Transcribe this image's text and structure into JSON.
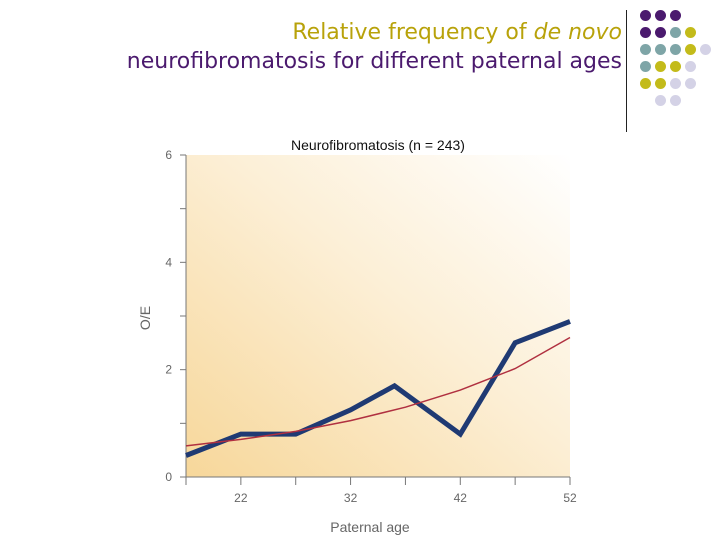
{
  "slide": {
    "title_line1_prefix": "Relative frequency of ",
    "title_line1_italic": "de novo",
    "title_line2": "neurofibromatosis for different paternal ages"
  },
  "decor": {
    "colors": {
      "purple": "#4b1a6e",
      "teal": "#7ea5a7",
      "olive": "#c3bb1a",
      "lavender": "#d4d2e6"
    },
    "grid": [
      [
        "purple",
        "purple",
        "purple",
        null,
        null
      ],
      [
        "purple",
        "purple",
        "teal",
        "olive",
        null
      ],
      [
        "teal",
        "teal",
        "teal",
        "olive",
        "lavender"
      ],
      [
        "teal",
        "olive",
        "olive",
        "lavender",
        null
      ],
      [
        "olive",
        "olive",
        "lavender",
        "lavender",
        null
      ],
      [
        null,
        "lavender",
        "lavender",
        null,
        null
      ]
    ]
  },
  "chart_data": {
    "type": "line",
    "title": "Neurofibromatosis (n = 243)",
    "xlabel": "Paternal age",
    "ylabel": "O/E",
    "xlim": [
      17,
      52
    ],
    "ylim": [
      0,
      6
    ],
    "xticks": [
      22,
      32,
      42,
      52
    ],
    "yticks": [
      0,
      2,
      4,
      6
    ],
    "series": [
      {
        "color": "#1f3a73",
        "x": [
          17,
          22,
          27,
          32,
          36,
          42,
          47,
          52
        ],
        "y": [
          0.4,
          0.8,
          0.8,
          1.25,
          1.7,
          0.8,
          2.5,
          2.9
        ]
      },
      {
        "color": "#b03040",
        "x": [
          17,
          22,
          27,
          32,
          37,
          42,
          47,
          52
        ],
        "y": [
          0.58,
          0.7,
          0.85,
          1.05,
          1.3,
          1.62,
          2.02,
          2.6
        ]
      }
    ]
  }
}
